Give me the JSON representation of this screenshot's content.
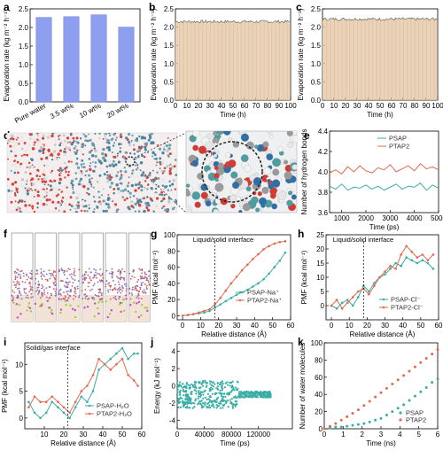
{
  "panel_labels": {
    "a": "a",
    "b": "b",
    "c": "c",
    "d": "d",
    "e": "e",
    "f": "f",
    "g": "g",
    "h": "h",
    "i": "i",
    "j": "j",
    "k": "k"
  },
  "colors": {
    "blue_bar": "#8f9ff0",
    "tan_bar": "#e2c4a0",
    "teal": "#3aaea6",
    "red": "#e06a50",
    "dark": "#3a3a3a"
  },
  "chart_data": [
    {
      "panel": "a",
      "type": "bar",
      "categories": [
        "Pure water",
        "3.5 wt%",
        "10 wt%",
        "20 wt%"
      ],
      "values": [
        2.27,
        2.29,
        2.34,
        2.01
      ],
      "ylabel": "Evaporation rate (kg m⁻² h⁻¹)",
      "ylim": [
        0,
        2.5
      ],
      "yticks": [
        "0.0",
        "0.5",
        "1.0",
        "1.5",
        "2.0",
        "2.5"
      ]
    },
    {
      "panel": "b",
      "type": "bar",
      "values_summary": "about 2.15 each hour, 0–100 h",
      "n_bars": 100,
      "mean": 2.15,
      "xlabel": "Time (h)",
      "ylabel": "Evaporation rate (kg m⁻² h⁻¹)",
      "xlim": [
        0,
        100
      ],
      "ylim": [
        0,
        2.5
      ],
      "xticks": [
        "0",
        "10",
        "20",
        "30",
        "40",
        "50",
        "60",
        "70",
        "80",
        "90",
        "100"
      ],
      "yticks": [
        "0.0",
        "0.5",
        "1.0",
        "1.5",
        "2.0",
        "2.5"
      ]
    },
    {
      "panel": "c",
      "type": "bar",
      "n_bars": 100,
      "mean": 2.22,
      "xlabel": "Time (h)",
      "ylabel": "Evaporation rate (kg m⁻² h⁻¹)",
      "xlim": [
        0,
        100
      ],
      "ylim": [
        0,
        2.5
      ],
      "xticks": [
        "0",
        "10",
        "20",
        "30",
        "40",
        "50",
        "60",
        "70",
        "80",
        "90",
        "100"
      ],
      "yticks": [
        "0.0",
        "0.5",
        "1.0",
        "1.5",
        "2.0",
        "2.5"
      ]
    },
    {
      "panel": "e",
      "type": "line",
      "xlabel": "Time (ps)",
      "ylabel": "Number of hydrogen bonds",
      "xlim": [
        500,
        5000
      ],
      "ylim": [
        3.6,
        4.4
      ],
      "xticks": [
        "1000",
        "2000",
        "3000",
        "4000",
        "5000"
      ],
      "yticks": [
        "3.6",
        "3.8",
        "4.0",
        "4.2",
        "4.4"
      ],
      "x": [
        500,
        750,
        1000,
        1250,
        1500,
        1750,
        2000,
        2250,
        2500,
        2750,
        3000,
        3250,
        3500,
        3750,
        4000,
        4250,
        4500,
        4750,
        5000
      ],
      "series": [
        {
          "name": "PSAP",
          "values": [
            3.86,
            3.83,
            3.88,
            3.82,
            3.85,
            3.84,
            3.87,
            3.83,
            3.86,
            3.82,
            3.85,
            3.88,
            3.83,
            3.86,
            3.85,
            3.89,
            3.82,
            3.87,
            3.84
          ]
        },
        {
          "name": "PTAP2",
          "values": [
            3.99,
            4.02,
            3.98,
            4.05,
            4.0,
            4.06,
            4.01,
            3.99,
            4.04,
            4.02,
            4.07,
            4.0,
            4.03,
            4.06,
            4.01,
            4.08,
            4.03,
            4.05,
            4.02
          ]
        }
      ]
    },
    {
      "panel": "g",
      "type": "line",
      "xlabel": "Relative distance (Å)",
      "ylabel": "PMF (kcal mol⁻¹)",
      "xlim": [
        -3,
        60
      ],
      "ylim": [
        -5,
        100
      ],
      "xticks": [
        "0",
        "10",
        "20",
        "30",
        "40",
        "50",
        "60"
      ],
      "yticks": [
        "0",
        "20",
        "40",
        "60",
        "80",
        "100"
      ],
      "annotation": "Liquid/solid interface",
      "vline_x": 18,
      "x": [
        0,
        3,
        6,
        9,
        12,
        15,
        18,
        21,
        24,
        27,
        30,
        33,
        36,
        39,
        42,
        45,
        48,
        51,
        54,
        57
      ],
      "series": [
        {
          "name": "PSAP-Na⁺",
          "values": [
            0,
            1,
            2,
            3,
            4,
            6,
            10,
            14,
            18,
            22,
            26,
            29,
            32,
            36,
            40,
            45,
            52,
            60,
            68,
            78
          ]
        },
        {
          "name": "PTAP2-Na⁺",
          "values": [
            0,
            1,
            2,
            4,
            6,
            8,
            14,
            22,
            31,
            40,
            48,
            56,
            63,
            70,
            76,
            82,
            86,
            89,
            91,
            92
          ]
        }
      ]
    },
    {
      "panel": "h",
      "type": "line",
      "xlabel": "Relative distance (Å)",
      "ylabel": "PMF (kcal mol⁻¹)",
      "xlim": [
        -3,
        60
      ],
      "ylim": [
        -5,
        25
      ],
      "xticks": [
        "0",
        "10",
        "20",
        "30",
        "40",
        "50",
        "60"
      ],
      "yticks": [
        "0",
        "5",
        "10",
        "15",
        "20",
        "25"
      ],
      "annotation": "Liquid/solid interface",
      "vline_x": 18,
      "x": [
        0,
        3,
        6,
        9,
        12,
        15,
        18,
        21,
        24,
        27,
        30,
        33,
        36,
        39,
        42,
        45,
        48,
        51,
        54,
        57
      ],
      "series": [
        {
          "name": "PSAP-Cl⁻",
          "values": [
            0,
            -1,
            1,
            2,
            0,
            3,
            7,
            5,
            8,
            10,
            11,
            13,
            15,
            14,
            17,
            16,
            15,
            16,
            15,
            13
          ]
        },
        {
          "name": "PTAP2-Cl⁻",
          "values": [
            0,
            2,
            -1,
            1,
            3,
            5,
            6,
            4,
            7,
            10,
            12,
            14,
            13,
            18,
            21,
            19,
            17,
            18,
            16,
            18
          ]
        }
      ]
    },
    {
      "panel": "i",
      "type": "line",
      "xlabel": "Relative distance (Å)",
      "ylabel": "PMF (kcal mol⁻¹)",
      "xlim": [
        0,
        60
      ],
      "ylim": [
        -2,
        14
      ],
      "xticks": [
        "10",
        "20",
        "30",
        "40",
        "50",
        "60"
      ],
      "yticks": [
        "0",
        "5",
        "10"
      ],
      "annotation": "Solid/gas interface",
      "vline_x": 22,
      "x": [
        2,
        5,
        8,
        11,
        14,
        17,
        20,
        23,
        26,
        29,
        32,
        35,
        38,
        41,
        44,
        47,
        50,
        53,
        56,
        58
      ],
      "series": [
        {
          "name": "PSAP-H₂O",
          "values": [
            3,
            1,
            0,
            1,
            3,
            2,
            1,
            0,
            2,
            4,
            3,
            5,
            9,
            10,
            11,
            12,
            13,
            11,
            12,
            12
          ]
        },
        {
          "name": "PTAP2-H₂O",
          "values": [
            2,
            4,
            3,
            3,
            4,
            3,
            2,
            1,
            3,
            5,
            6,
            8,
            11,
            10,
            9,
            10,
            11,
            8,
            7,
            6
          ]
        }
      ]
    },
    {
      "panel": "j",
      "type": "scatter",
      "xlabel": "Time (ps)",
      "ylabel": "Energy (kJ mol⁻¹)",
      "xlim": [
        0,
        170000
      ],
      "ylim": [
        -5,
        5
      ],
      "xticks": [
        "0",
        "40000",
        "80000",
        "120000"
      ],
      "yticks": [
        "-4",
        "-2",
        "0",
        "2",
        "4"
      ],
      "description_values": {
        "noisy_until_ps": 90000,
        "level_kj": -1
      }
    },
    {
      "panel": "k",
      "type": "scatter",
      "xlabel": "Time (ns)",
      "ylabel": "Number of water molecules",
      "xlim": [
        0,
        6
      ],
      "ylim": [
        0,
        100
      ],
      "xticks": [
        "0",
        "1",
        "2",
        "3",
        "4",
        "5",
        "6"
      ],
      "yticks": [
        "0",
        "20",
        "40",
        "60",
        "80",
        "100"
      ],
      "x": [
        0,
        0.3,
        0.6,
        0.9,
        1.2,
        1.5,
        1.8,
        2.1,
        2.4,
        2.7,
        3.0,
        3.3,
        3.6,
        3.9,
        4.2,
        4.5,
        4.8,
        5.1,
        5.4,
        5.7,
        6.0
      ],
      "series": [
        {
          "name": "PSAP",
          "values": [
            0,
            1,
            2,
            2,
            3,
            4,
            5,
            6,
            8,
            10,
            12,
            16,
            20,
            24,
            28,
            33,
            38,
            43,
            48,
            54,
            58
          ]
        },
        {
          "name": "PTAP2",
          "values": [
            0,
            3,
            6,
            10,
            14,
            18,
            22,
            27,
            32,
            37,
            42,
            47,
            52,
            57,
            62,
            67,
            72,
            77,
            82,
            87,
            92
          ]
        }
      ]
    }
  ]
}
